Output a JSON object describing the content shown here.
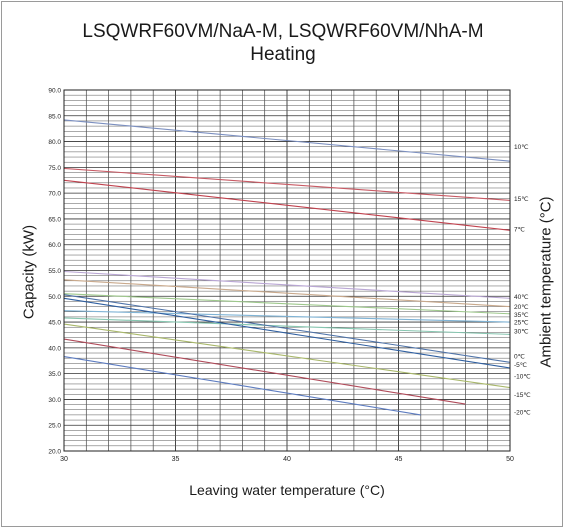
{
  "chart_data": {
    "type": "line",
    "title": "LSQWRF60VM/NaA-M, LSQWRF60VM/NhA-M",
    "subtitle": "Heating",
    "xlabel": "Leaving water temperature (°C)",
    "ylabel": "Capacity (kW)",
    "y2label": "Ambient temperature (°C)",
    "xlim": [
      30,
      50
    ],
    "ylim": [
      20,
      90
    ],
    "xticks": [
      "30",
      "35",
      "40",
      "45",
      "50"
    ],
    "yticks": [
      "20.0",
      "25.0",
      "30.0",
      "35.0",
      "40.0",
      "45.0",
      "50.0",
      "55.0",
      "60.0",
      "65.0",
      "70.0",
      "75.0",
      "80.0",
      "85.0",
      "90.0"
    ],
    "grid": true,
    "series": [
      {
        "name": "10℃",
        "color": "#7b8fc0",
        "x": [
          30,
          50
        ],
        "y": [
          84.2,
          76.2
        ]
      },
      {
        "name": "15℃",
        "color": "#c85a64",
        "x": [
          30,
          50
        ],
        "y": [
          74.8,
          68.6
        ]
      },
      {
        "name": "7℃",
        "color": "#c0424e",
        "x": [
          30,
          50
        ],
        "y": [
          72.5,
          62.8
        ]
      },
      {
        "name": "40℃",
        "color": "#b9a6d4",
        "x": [
          30,
          50
        ],
        "y": [
          54.8,
          49.6
        ]
      },
      {
        "name": "20℃",
        "color": "#c9a98c",
        "x": [
          30,
          50
        ],
        "y": [
          53.2,
          48.0
        ]
      },
      {
        "name": "35℃",
        "color": "#9ec88c",
        "x": [
          30,
          50
        ],
        "y": [
          50.5,
          46.6
        ]
      },
      {
        "name": "25℃",
        "color": "#7fb3d5",
        "x": [
          30,
          50
        ],
        "y": [
          47.2,
          45.0
        ]
      },
      {
        "name": "30℃",
        "color": "#86c6b0",
        "x": [
          30,
          50
        ],
        "y": [
          45.8,
          42.6
        ]
      },
      {
        "name": "0℃",
        "color": "#4f73a8",
        "x": [
          30,
          50
        ],
        "y": [
          50.3,
          37.2
        ]
      },
      {
        "name": "-5℃",
        "color": "#2f5fa0",
        "x": [
          30,
          50
        ],
        "y": [
          49.6,
          36.1
        ]
      },
      {
        "name": "-10℃",
        "color": "#a9b86a",
        "x": [
          30,
          50
        ],
        "y": [
          44.6,
          32.3
        ]
      },
      {
        "name": "-15℃",
        "color": "#b04b5a",
        "x": [
          30,
          48
        ],
        "y": [
          41.7,
          29.1
        ]
      },
      {
        "name": "-20℃",
        "color": "#5d7cc0",
        "x": [
          30,
          46
        ],
        "y": [
          38.3,
          27.0
        ]
      }
    ]
  }
}
